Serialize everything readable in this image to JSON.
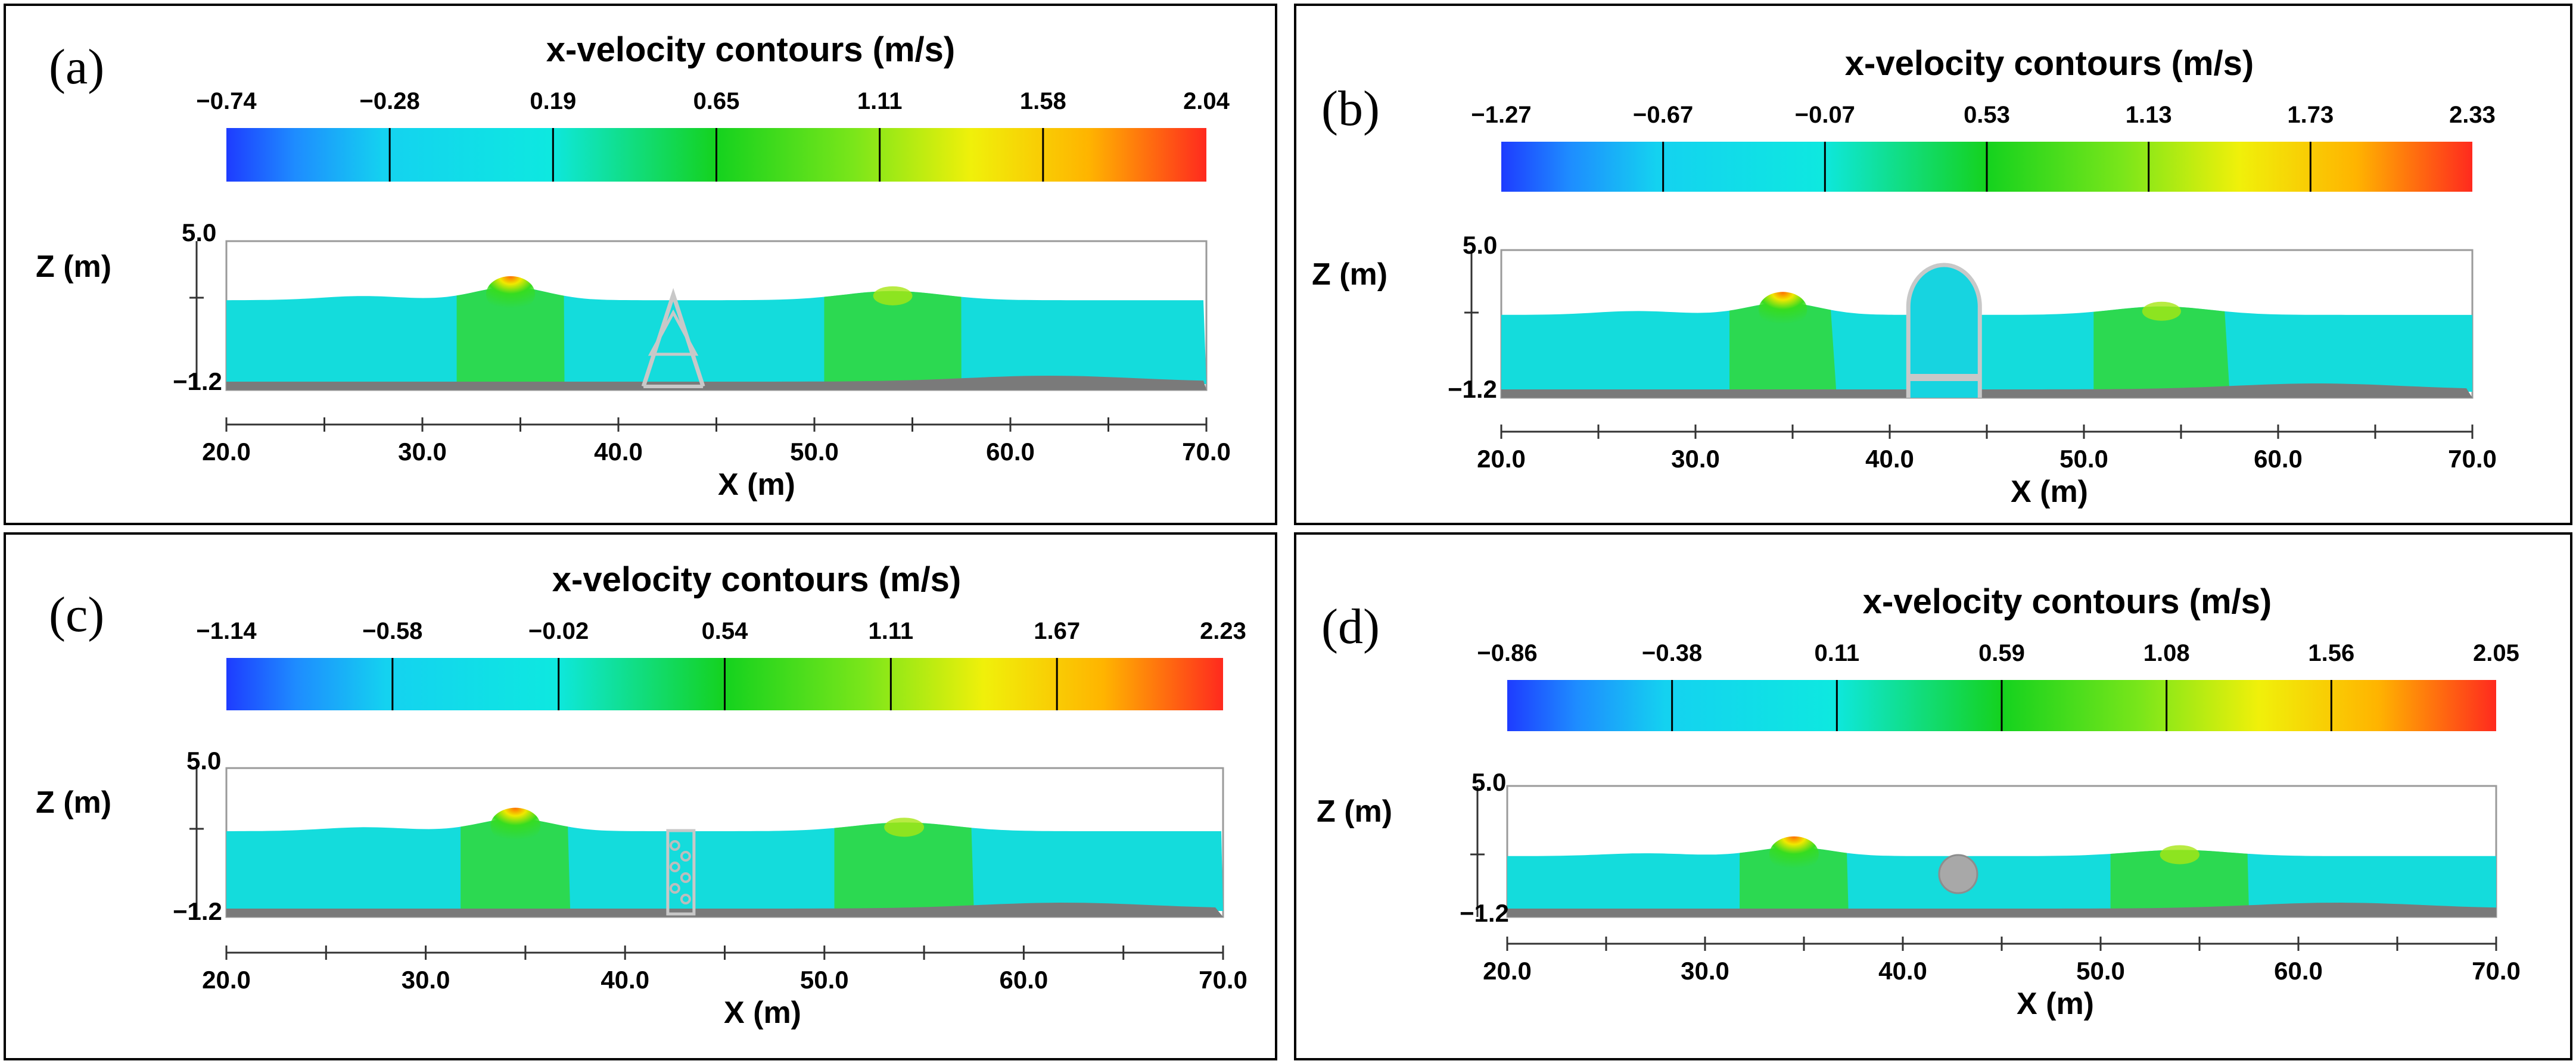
{
  "chart_data": [
    {
      "type": "heatmap",
      "panel_label": "(a)",
      "title": "x-velocity contours",
      "title_unit": "(m/s)",
      "colorbar_ticks": [
        "−0.74",
        "−0.28",
        "0.19",
        "0.65",
        "1.11",
        "1.58",
        "2.04"
      ],
      "colorbar_range": [
        -0.74,
        2.04
      ],
      "xlabel": "X",
      "xlabel_unit": "(m)",
      "ylabel": "Z",
      "ylabel_unit": "(m)",
      "x_ticks": [
        "20.0",
        "30.0",
        "40.0",
        "50.0",
        "60.0",
        "70.0"
      ],
      "y_ticks": [
        "5.0",
        "−1.2"
      ],
      "xlim": [
        20,
        70
      ],
      "ylim": [
        -1.2,
        5.0
      ],
      "structure": "trapezoid frame"
    },
    {
      "type": "heatmap",
      "panel_label": "(b)",
      "title": "x-velocity contours",
      "title_unit": "(m/s)",
      "colorbar_ticks": [
        "−1.27",
        "−0.67",
        "−0.07",
        "0.53",
        "1.13",
        "1.73",
        "2.33"
      ],
      "colorbar_range": [
        -1.27,
        2.33
      ],
      "xlabel": "X",
      "xlabel_unit": "(m)",
      "ylabel": "Z",
      "ylabel_unit": "(m)",
      "x_ticks": [
        "20.0",
        "30.0",
        "40.0",
        "50.0",
        "60.0",
        "70.0"
      ],
      "y_ticks": [
        "5.0",
        "−1.2"
      ],
      "xlim": [
        20,
        70
      ],
      "ylim": [
        -1.2,
        5.0
      ],
      "structure": "arch frame"
    },
    {
      "type": "heatmap",
      "panel_label": "(c)",
      "title": "x-velocity contours",
      "title_unit": "(m/s)",
      "colorbar_ticks": [
        "−1.14",
        "−0.58",
        "−0.02",
        "0.54",
        "1.11",
        "1.67",
        "2.23"
      ],
      "colorbar_range": [
        -1.14,
        2.23
      ],
      "xlabel": "X",
      "xlabel_unit": "(m)",
      "ylabel": "Z",
      "ylabel_unit": "(m)",
      "x_ticks": [
        "20.0",
        "30.0",
        "40.0",
        "50.0",
        "60.0",
        "70.0"
      ],
      "y_ticks": [
        "5.0",
        "−1.2"
      ],
      "xlim": [
        20,
        70
      ],
      "ylim": [
        -1.2,
        5.0
      ],
      "structure": "rubble block"
    },
    {
      "type": "heatmap",
      "panel_label": "(d)",
      "title": "x-velocity contours",
      "title_unit": "(m/s)",
      "colorbar_ticks": [
        "−0.86",
        "−0.38",
        "0.11",
        "0.59",
        "1.08",
        "1.56",
        "2.05"
      ],
      "colorbar_range": [
        -0.86,
        2.05
      ],
      "xlabel": "X",
      "xlabel_unit": "(m)",
      "ylabel": "Z",
      "ylabel_unit": "(m)",
      "x_ticks": [
        "20.0",
        "30.0",
        "40.0",
        "50.0",
        "60.0",
        "70.0"
      ],
      "y_ticks": [
        "5.0",
        "−1.2"
      ],
      "xlim": [
        20,
        70
      ],
      "ylim": [
        -1.2,
        5.0
      ],
      "structure": "circular cylinder"
    }
  ]
}
